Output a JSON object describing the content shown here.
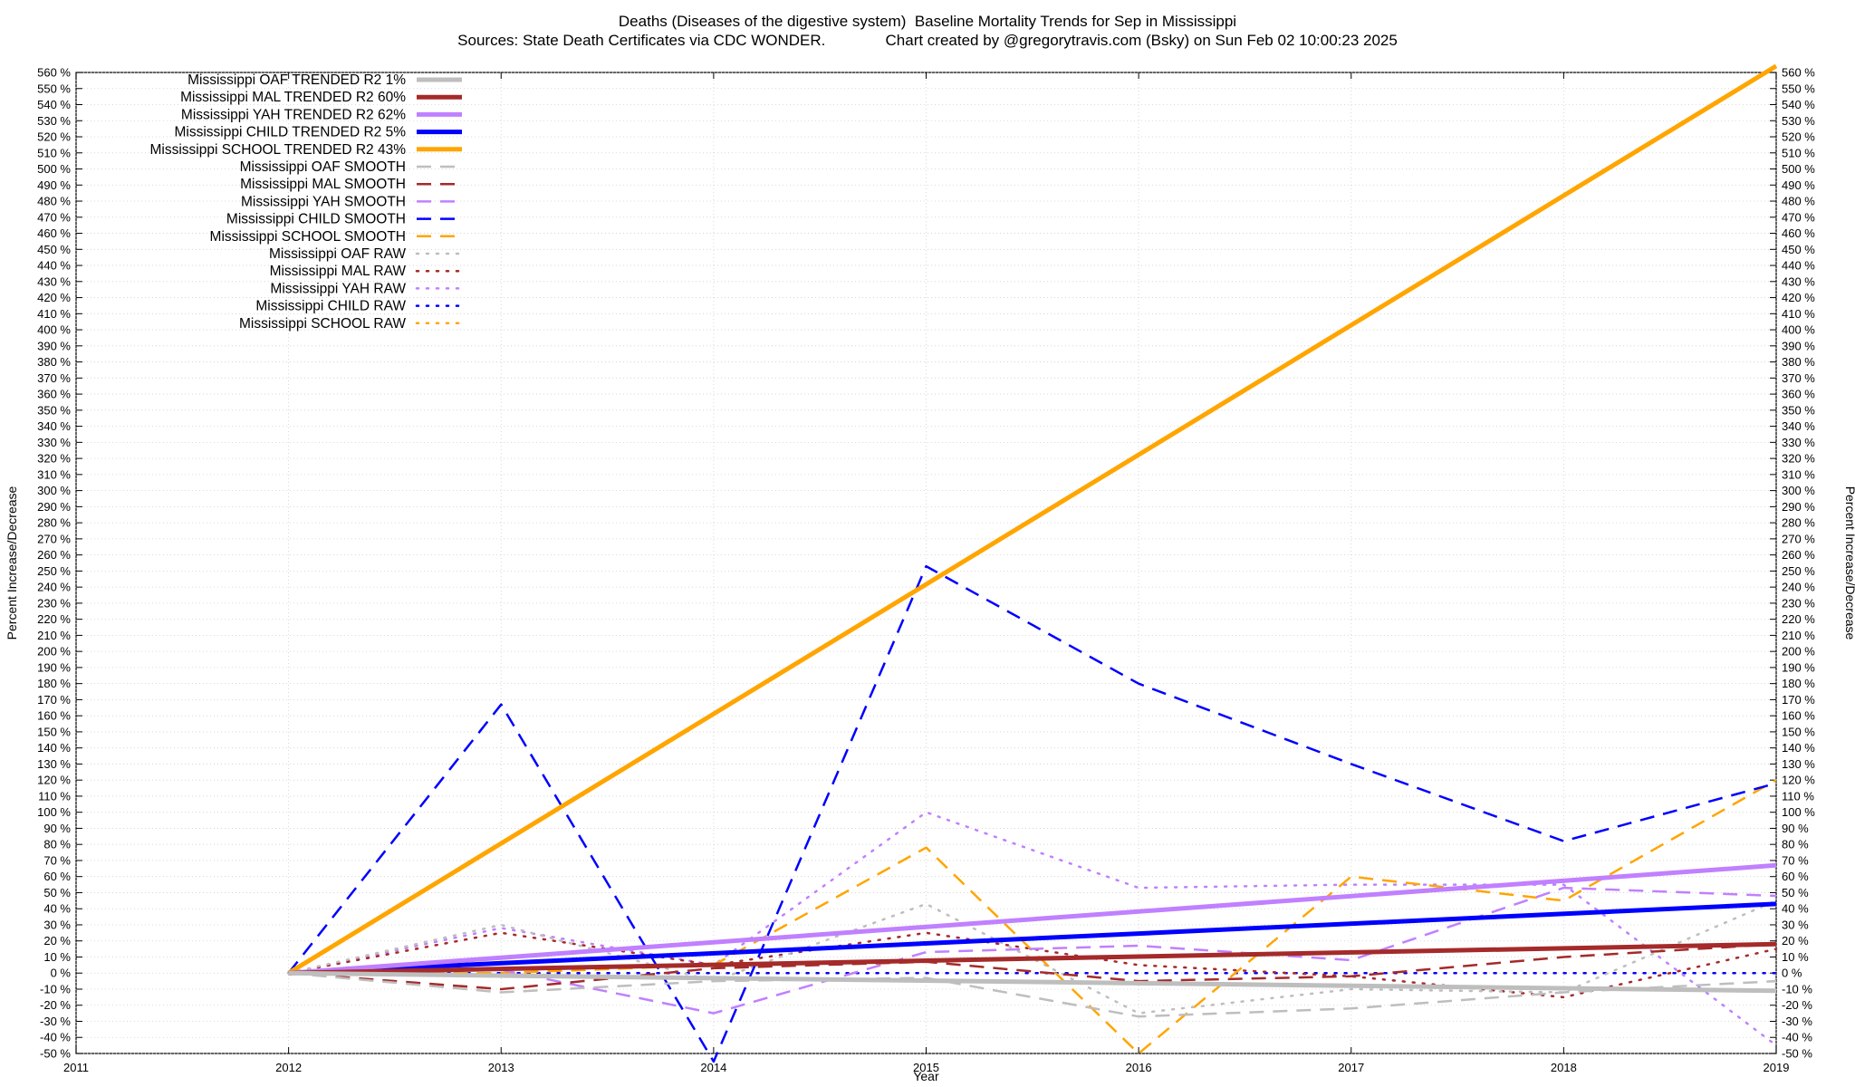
{
  "header": {
    "title": "Deaths (Diseases of the digestive system)  Baseline Mortality Trends for Sep in Mississippi",
    "subtitle": "Sources: State Death Certificates via CDC WONDER.              Chart created by @gregorytravis.com (Bsky) on Sun Feb 02 10:00:23 2025"
  },
  "chart_data": {
    "type": "line",
    "xlabel": "Year",
    "ylabel": "Percent Increase/Decrease",
    "y2label": "Percent Increase/Decrease",
    "xlim": [
      2011,
      2019
    ],
    "ylim": [
      -50,
      560
    ],
    "x_ticks": [
      "2011",
      "2012",
      "2013",
      "2014",
      "2015",
      "2016",
      "2017",
      "2018",
      "2019"
    ],
    "y_tick_step": 10,
    "y_tick_suffix": " %",
    "grid": true,
    "legend_position": "top-left",
    "series": [
      {
        "name": "Mississippi OAF TRENDED R2   1%",
        "style": "solid",
        "color": "#bebebe",
        "width": 5,
        "x": [
          2012,
          2019
        ],
        "y": [
          0,
          -11
        ]
      },
      {
        "name": "Mississippi MAL TRENDED R2  60%",
        "style": "solid",
        "color": "#a52a2a",
        "width": 5,
        "x": [
          2012,
          2019
        ],
        "y": [
          0,
          18
        ]
      },
      {
        "name": "Mississippi YAH TRENDED R2  62%",
        "style": "solid",
        "color": "#c080ff",
        "width": 5,
        "x": [
          2012,
          2019
        ],
        "y": [
          0,
          67
        ]
      },
      {
        "name": "Mississippi CHILD TRENDED R2   5%",
        "style": "solid",
        "color": "#0000ff",
        "width": 5,
        "x": [
          2012,
          2019
        ],
        "y": [
          0,
          43
        ]
      },
      {
        "name": "Mississippi SCHOOL TRENDED R2  43%",
        "style": "solid",
        "color": "#ffa500",
        "width": 5,
        "x": [
          2012,
          2019
        ],
        "y": [
          0,
          564
        ]
      },
      {
        "name": "Mississippi OAF SMOOTH",
        "style": "dashed",
        "color": "#bebebe",
        "width": 2.5,
        "x": [
          2012,
          2013,
          2014,
          2015,
          2016,
          2017,
          2018,
          2019
        ],
        "y": [
          0,
          -12,
          -5,
          -3,
          -27,
          -22,
          -12,
          -5
        ]
      },
      {
        "name": "Mississippi MAL SMOOTH",
        "style": "dashed",
        "color": "#a52a2a",
        "width": 2.5,
        "x": [
          2012,
          2013,
          2014,
          2015,
          2016,
          2017,
          2018,
          2019
        ],
        "y": [
          0,
          -10,
          3,
          7,
          -5,
          -2,
          10,
          18
        ]
      },
      {
        "name": "Mississippi YAH SMOOTH",
        "style": "dashed",
        "color": "#c080ff",
        "width": 2.5,
        "x": [
          2012,
          2013,
          2014,
          2015,
          2016,
          2017,
          2018,
          2019
        ],
        "y": [
          0,
          2,
          -25,
          13,
          17,
          8,
          53,
          48
        ]
      },
      {
        "name": "Mississippi CHILD SMOOTH",
        "style": "dashed",
        "color": "#0000ff",
        "width": 2.5,
        "x": [
          2012,
          2013,
          2014,
          2015,
          2016,
          2017,
          2018,
          2019
        ],
        "y": [
          0,
          167,
          -55,
          253,
          180,
          130,
          82,
          118
        ]
      },
      {
        "name": "Mississippi SCHOOL SMOOTH",
        "style": "dashed",
        "color": "#ffa500",
        "width": 2.5,
        "x": [
          2012,
          2013,
          2014,
          2015,
          2016,
          2017,
          2018,
          2019
        ],
        "y": [
          0,
          0,
          5,
          78,
          -50,
          60,
          45,
          120
        ]
      },
      {
        "name": "Mississippi OAF RAW",
        "style": "dotted",
        "color": "#bebebe",
        "width": 2.5,
        "x": [
          2012,
          2013,
          2014,
          2015,
          2016,
          2017,
          2018,
          2019
        ],
        "y": [
          0,
          30,
          -5,
          43,
          -25,
          -10,
          -12,
          45
        ]
      },
      {
        "name": "Mississippi MAL RAW",
        "style": "dotted",
        "color": "#a52a2a",
        "width": 2.5,
        "x": [
          2012,
          2013,
          2014,
          2015,
          2016,
          2017,
          2018,
          2019
        ],
        "y": [
          0,
          25,
          5,
          25,
          5,
          -2,
          -15,
          15
        ]
      },
      {
        "name": "Mississippi YAH RAW",
        "style": "dotted",
        "color": "#c080ff",
        "width": 2.5,
        "x": [
          2012,
          2013,
          2014,
          2015,
          2016,
          2017,
          2018,
          2019
        ],
        "y": [
          0,
          28,
          5,
          100,
          53,
          55,
          55,
          -45
        ]
      },
      {
        "name": "Mississippi CHILD RAW",
        "style": "dotted",
        "color": "#0000ff",
        "width": 2.5,
        "x": [
          2012,
          2013,
          2014,
          2015,
          2016,
          2017,
          2018,
          2019
        ],
        "y": [
          0,
          0,
          0,
          0,
          0,
          0,
          0,
          0
        ]
      },
      {
        "name": "Mississippi SCHOOL RAW",
        "style": "dotted",
        "color": "#ffa500",
        "width": 2.5,
        "x": [
          2012,
          2013,
          2014,
          2015,
          2016,
          2017,
          2018,
          2019
        ],
        "y": [
          0,
          0,
          0,
          0,
          0,
          0,
          0,
          0
        ]
      }
    ]
  }
}
